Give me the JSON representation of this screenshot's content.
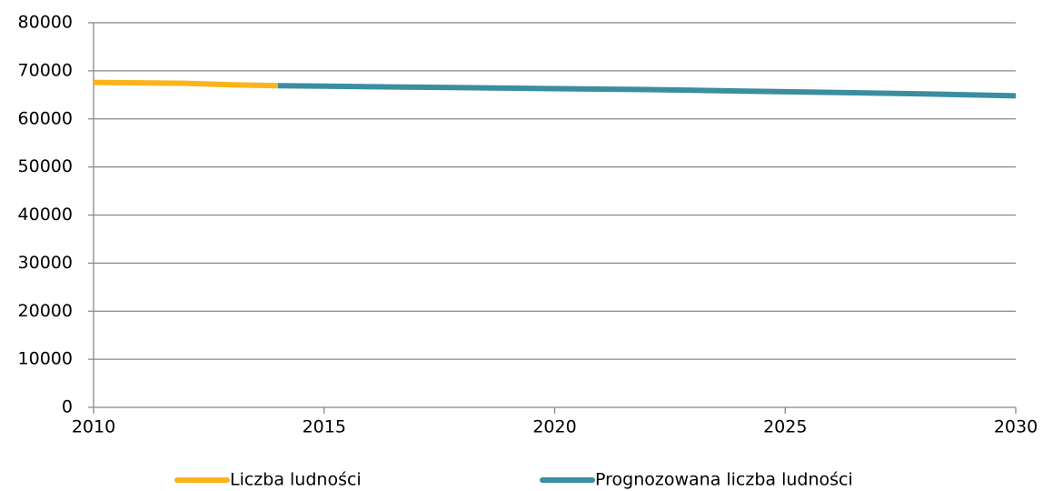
{
  "chart_data": {
    "type": "line",
    "xlim": [
      2010,
      2030
    ],
    "xticks": [
      2010,
      2015,
      2020,
      2025,
      2030
    ],
    "ylim": [
      0,
      80000
    ],
    "yticks": [
      0,
      10000,
      20000,
      30000,
      40000,
      50000,
      60000,
      70000,
      80000
    ],
    "grid": true,
    "legend": "bottom",
    "series": [
      {
        "name": "Liczba ludności",
        "color": "#fbb41a",
        "x": [
          2010,
          2011,
          2012,
          2013,
          2014
        ],
        "values": [
          67600,
          67500,
          67400,
          67100,
          66900
        ]
      },
      {
        "name": "Prognozowana liczba ludności",
        "color": "#3a8ea0",
        "x": [
          2014,
          2016,
          2018,
          2020,
          2022,
          2024,
          2026,
          2028,
          2030
        ],
        "values": [
          66900,
          66700,
          66500,
          66300,
          66100,
          65800,
          65500,
          65200,
          64800
        ]
      }
    ]
  }
}
